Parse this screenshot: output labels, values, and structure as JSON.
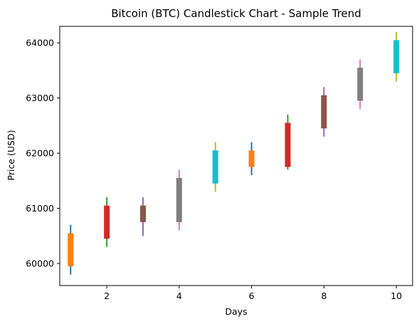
{
  "chart_data": {
    "type": "candlestick",
    "title": "Bitcoin (BTC) Candlestick Chart - Sample Trend",
    "xlabel": "Days",
    "ylabel": "Price (USD)",
    "xlim": [
      0.7,
      10.45
    ],
    "ylim": [
      59600,
      64300
    ],
    "x_ticks": [
      2,
      4,
      6,
      8,
      10
    ],
    "y_ticks": [
      60000,
      61000,
      62000,
      63000,
      64000
    ],
    "grid": false,
    "legend": "none",
    "candles": [
      {
        "x": 1,
        "open": 59950,
        "close": 60550,
        "low": 59800,
        "high": 60700,
        "body_color": "#ff7f0e",
        "wick_color": "#1f77b4"
      },
      {
        "x": 2,
        "open": 60450,
        "close": 61050,
        "low": 60300,
        "high": 61200,
        "body_color": "#d62728",
        "wick_color": "#2ca02c"
      },
      {
        "x": 3,
        "open": 60750,
        "close": 61050,
        "low": 60500,
        "high": 61200,
        "body_color": "#8c564b",
        "wick_color": "#9467bd"
      },
      {
        "x": 4,
        "open": 60750,
        "close": 61550,
        "low": 60600,
        "high": 61700,
        "body_color": "#7f7f7f",
        "wick_color": "#e377c2"
      },
      {
        "x": 5,
        "open": 61450,
        "close": 62050,
        "low": 61300,
        "high": 62200,
        "body_color": "#17becf",
        "wick_color": "#bcbd22"
      },
      {
        "x": 6,
        "open": 61750,
        "close": 62050,
        "low": 61600,
        "high": 62200,
        "body_color": "#ff7f0e",
        "wick_color": "#1f77b4"
      },
      {
        "x": 7,
        "open": 61750,
        "close": 62550,
        "low": 61700,
        "high": 62700,
        "body_color": "#d62728",
        "wick_color": "#2ca02c"
      },
      {
        "x": 8,
        "open": 62450,
        "close": 63050,
        "low": 62300,
        "high": 63200,
        "body_color": "#8c564b",
        "wick_color": "#9467bd"
      },
      {
        "x": 9,
        "open": 62950,
        "close": 63550,
        "low": 62800,
        "high": 63700,
        "body_color": "#7f7f7f",
        "wick_color": "#e377c2"
      },
      {
        "x": 10,
        "open": 63450,
        "close": 64050,
        "low": 63300,
        "high": 64200,
        "body_color": "#17becf",
        "wick_color": "#bcbd22"
      }
    ]
  }
}
